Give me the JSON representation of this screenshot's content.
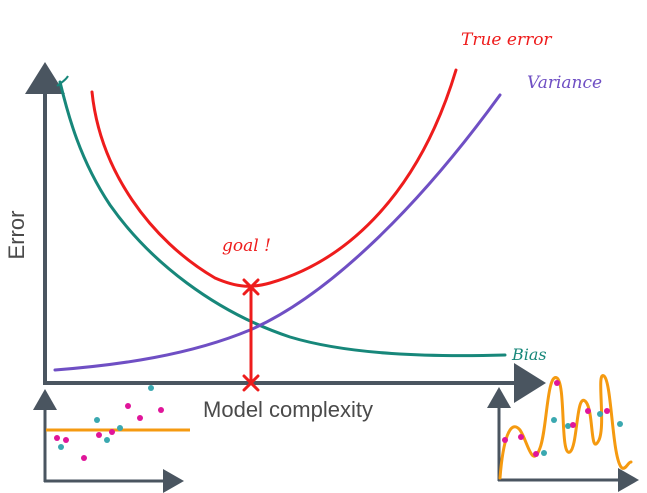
{
  "labels": {
    "y_axis": "Error",
    "x_axis": "Model complexity",
    "true_error": "True error",
    "variance": "Variance",
    "bias": "Bias",
    "goal": "goal !"
  },
  "colors": {
    "true_error": "#ee1c1c",
    "variance": "#6f4fc4",
    "bias": "#17877a",
    "axis": "#4a5560",
    "fit_line": "#f59a10",
    "point_magenta": "#e0159a",
    "point_teal": "#3aa8b0",
    "axis_label": "#4a4a4a"
  }
}
